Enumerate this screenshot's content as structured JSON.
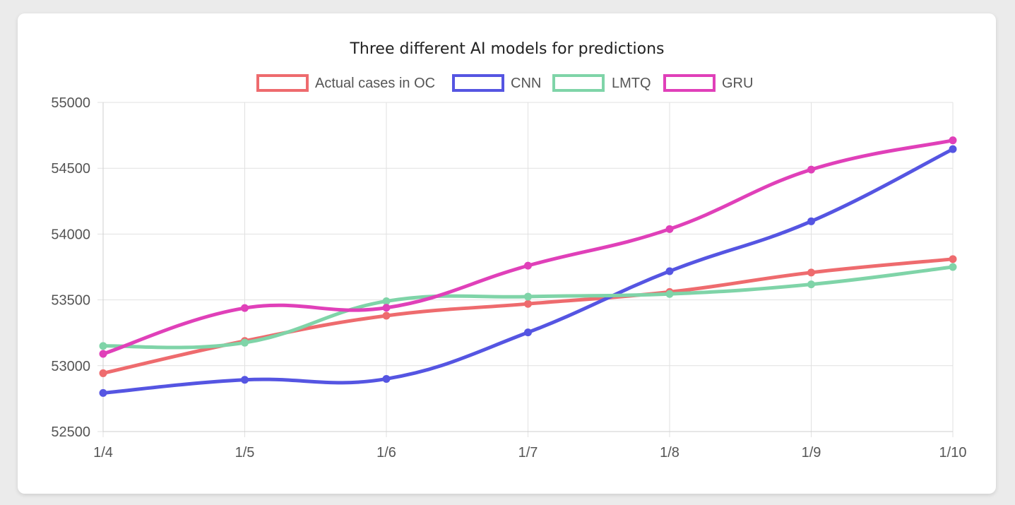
{
  "chart_data": {
    "type": "line",
    "title": "Three different AI models for predictions",
    "categories": [
      "1/4",
      "1/5",
      "1/6",
      "1/7",
      "1/8",
      "1/9",
      "1/10"
    ],
    "ylim": [
      52500,
      55000
    ],
    "yticks": [
      "55000",
      "54500",
      "54000",
      "53500",
      "53000",
      "52500"
    ],
    "grid": true,
    "legend_position": "top-center",
    "series": [
      {
        "name": "Actual cases in OC",
        "color": "#ee6b6e",
        "values": [
          52943,
          53188,
          53380,
          53470,
          53560,
          53708,
          53810
        ]
      },
      {
        "name": "CNN",
        "color": "#5555e2",
        "values": [
          52793,
          52893,
          52900,
          53253,
          53718,
          54097,
          54645
        ]
      },
      {
        "name": "LMTQ",
        "color": "#7fd4a8",
        "values": [
          53150,
          53175,
          53490,
          53525,
          53545,
          53618,
          53750
        ]
      },
      {
        "name": "GRU",
        "color": "#e040b9",
        "values": [
          53090,
          53438,
          53440,
          53760,
          54038,
          54490,
          54712
        ]
      }
    ]
  }
}
